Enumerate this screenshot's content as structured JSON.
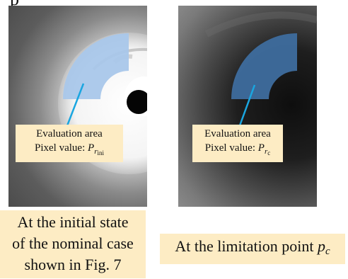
{
  "top_fragment": "p",
  "panels": [
    {
      "id": "initial",
      "callout": {
        "label": "Evaluation area",
        "value_prefix": "Pixel value: ",
        "symbol": "P",
        "subscript": "r",
        "sub_subscript": "ini"
      },
      "caption_lines": [
        "At the initial state",
        "of the nominal case",
        "shown in Fig. 7"
      ],
      "highlight_color": "#a9c7ea",
      "pointer_color": "#1aa6e0"
    },
    {
      "id": "limit",
      "callout": {
        "label": "Evaluation area",
        "value_prefix": "Pixel value: ",
        "symbol": "P",
        "subscript": "r",
        "sub_subscript": "c"
      },
      "caption_text": "At the limitation point ",
      "caption_symbol": "p",
      "caption_subscript": "c",
      "highlight_color": "#3e6d9e",
      "pointer_color": "#1aa6e0"
    }
  ]
}
